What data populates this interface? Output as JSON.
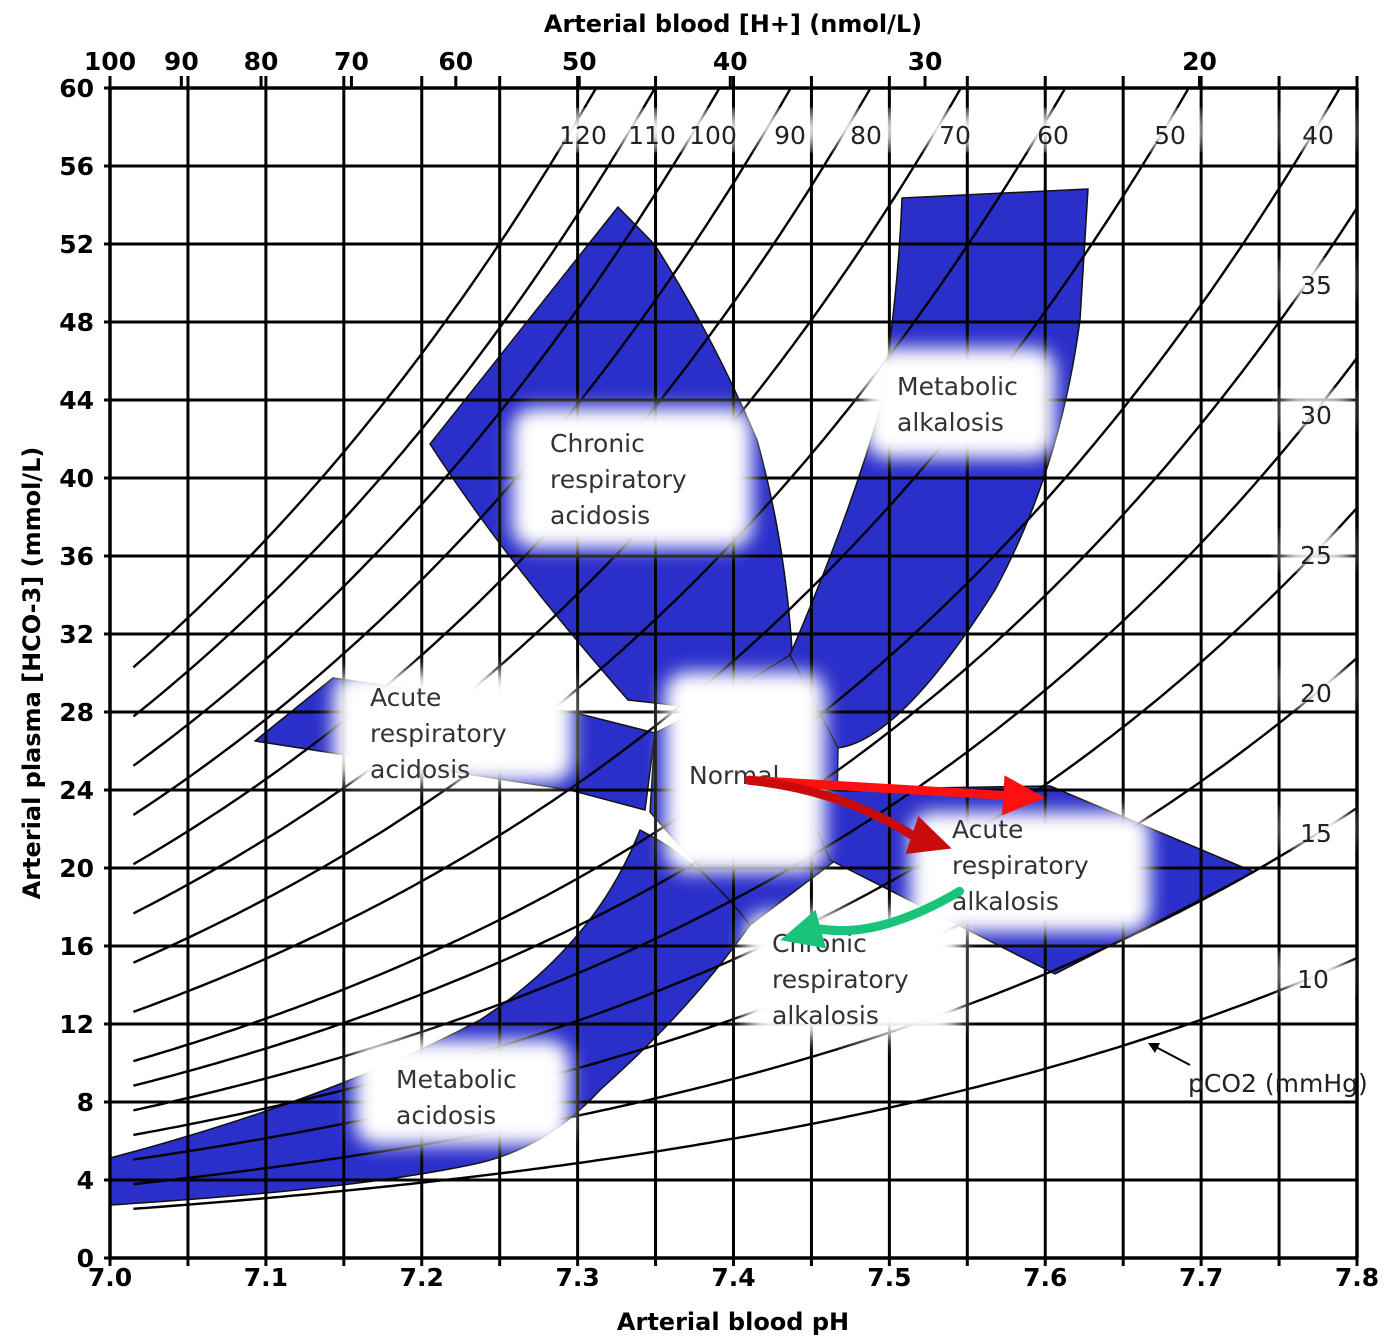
{
  "chart_data": {
    "type": "area",
    "title": "",
    "xlabel": "Arterial blood pH",
    "ylabel": "Arterial plasma [HCO-3] (mmol/L)",
    "top_axis_label": "Arterial blood [H+] (nmol/L)",
    "xlim": [
      7.0,
      7.8
    ],
    "ylim": [
      0,
      60
    ],
    "x_ticks": [
      "7.0",
      "7.1",
      "7.2",
      "7.3",
      "7.4",
      "7.5",
      "7.6",
      "7.7",
      "7.8"
    ],
    "y_ticks": [
      "0",
      "4",
      "8",
      "12",
      "16",
      "20",
      "24",
      "28",
      "32",
      "36",
      "40",
      "44",
      "48",
      "52",
      "56",
      "60"
    ],
    "h_ticks": [
      "100",
      "90",
      "80",
      "70",
      "60",
      "50",
      "40",
      "30",
      "20"
    ],
    "isobar_unit_label": "pCO2 (mmHg)",
    "isobars": [
      "120",
      "110",
      "100",
      "90",
      "80",
      "70",
      "60",
      "50",
      "40",
      "35",
      "30",
      "25",
      "20",
      "15",
      "10"
    ],
    "grid": true,
    "region_color": "#2b2fc9",
    "regions": [
      {
        "label": "Chronic respiratory acidosis",
        "lines": [
          "Chronic",
          "respiratory",
          "acidosis"
        ]
      },
      {
        "label": "Metabolic alkalosis",
        "lines": [
          "Metabolic",
          "alkalosis"
        ]
      },
      {
        "label": "Acute respiratory acidosis",
        "lines": [
          "Acute",
          "respiratory",
          "acidosis"
        ]
      },
      {
        "label": "Normal",
        "lines": [
          "Normal"
        ]
      },
      {
        "label": "Acute respiratory alkalosis",
        "lines": [
          "Acute",
          "respiratory",
          "alkalosis"
        ]
      },
      {
        "label": "Chronic respiratory alkalosis",
        "lines": [
          "Chronic",
          "respiratory",
          "alkalosis"
        ]
      },
      {
        "label": "Metabolic acidosis",
        "lines": [
          "Metabolic",
          "acidosis"
        ]
      }
    ],
    "arrows": [
      {
        "color": "#ff1010",
        "from": [
          7.41,
          24.5
        ],
        "to": [
          7.6,
          23.6
        ]
      },
      {
        "color": "#c80c0c",
        "from": [
          7.41,
          24.5
        ],
        "to": [
          7.54,
          21.0
        ]
      },
      {
        "color": "#19c47a",
        "from": [
          7.545,
          18.8
        ],
        "to": [
          7.43,
          16.3
        ]
      }
    ]
  }
}
